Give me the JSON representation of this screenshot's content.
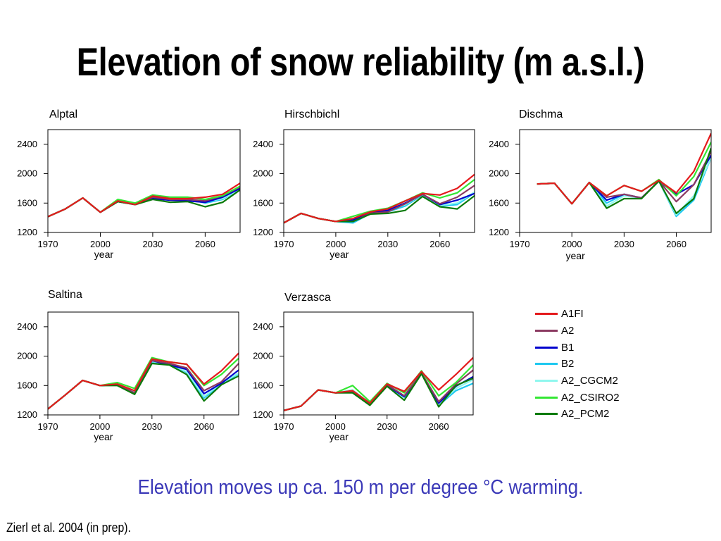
{
  "title": "Elevation of snow reliability (m a.s.l.)",
  "subtitle": "Elevation moves up ca. 150 m per degree °C warming.",
  "citation": "Zierl et al. 2004 (in prep).",
  "legend": [
    {
      "name": "A1FI",
      "color": "#e41a1c"
    },
    {
      "name": "A2",
      "color": "#8b3a62"
    },
    {
      "name": "B1",
      "color": "#0000cd"
    },
    {
      "name": "B2",
      "color": "#1ec8f0"
    },
    {
      "name": "A2_CGCM2",
      "color": "#8ff7ee"
    },
    {
      "name": "A2_CSIRO2",
      "color": "#33e633"
    },
    {
      "name": "A2_PCM2",
      "color": "#0a7a0a"
    }
  ],
  "chart_data": [
    {
      "type": "line",
      "title": "Alptal",
      "xlabel": "year",
      "ylabel": "",
      "xlim": [
        1970,
        2080
      ],
      "ylim": [
        1200,
        2600
      ],
      "xticks": [
        1970,
        2000,
        2030,
        2060
      ],
      "yticks": [
        1200,
        1600,
        2000,
        2400
      ],
      "x": [
        1970,
        1980,
        1990,
        2000,
        2010,
        2020,
        2030,
        2040,
        2050,
        2060,
        2070,
        2080
      ],
      "series": [
        {
          "name": "A1FI",
          "values": [
            1415,
            1520,
            1670,
            1475,
            1630,
            1580,
            1695,
            1660,
            1660,
            1680,
            1720,
            1870
          ]
        },
        {
          "name": "A2",
          "values": [
            1415,
            1520,
            1670,
            1475,
            1620,
            1580,
            1680,
            1650,
            1650,
            1630,
            1700,
            1820
          ]
        },
        {
          "name": "B1",
          "values": [
            1415,
            1520,
            1670,
            1475,
            1620,
            1580,
            1660,
            1640,
            1630,
            1610,
            1680,
            1800
          ]
        },
        {
          "name": "B2",
          "values": [
            1415,
            1520,
            1670,
            1475,
            1620,
            1590,
            1680,
            1650,
            1660,
            1600,
            1650,
            1790
          ]
        },
        {
          "name": "A2_CGCM2",
          "values": [
            1415,
            1520,
            1670,
            1475,
            1620,
            1600,
            1700,
            1660,
            1650,
            1620,
            1660,
            1790
          ]
        },
        {
          "name": "A2_CSIRO2",
          "values": [
            1415,
            1520,
            1670,
            1475,
            1650,
            1600,
            1710,
            1680,
            1680,
            1650,
            1700,
            1830
          ]
        },
        {
          "name": "A2_PCM2",
          "values": [
            1415,
            1520,
            1670,
            1475,
            1620,
            1580,
            1650,
            1610,
            1620,
            1550,
            1610,
            1780
          ]
        }
      ]
    },
    {
      "type": "line",
      "title": "Hirschbichl",
      "xlabel": "year",
      "ylabel": "",
      "xlim": [
        1970,
        2080
      ],
      "ylim": [
        1200,
        2600
      ],
      "xticks": [
        1970,
        2000,
        2030,
        2060
      ],
      "yticks": [
        1200,
        1600,
        2000,
        2400
      ],
      "x": [
        1970,
        1980,
        1990,
        2000,
        2010,
        2020,
        2030,
        2040,
        2050,
        2060,
        2070,
        2080
      ],
      "series": [
        {
          "name": "A1FI",
          "values": [
            1330,
            1460,
            1390,
            1350,
            1390,
            1480,
            1520,
            1630,
            1730,
            1710,
            1800,
            1990
          ]
        },
        {
          "name": "A2",
          "values": [
            1330,
            1460,
            1390,
            1350,
            1350,
            1460,
            1480,
            1590,
            1720,
            1590,
            1680,
            1840
          ]
        },
        {
          "name": "B1",
          "values": [
            1330,
            1460,
            1390,
            1350,
            1370,
            1470,
            1500,
            1600,
            1720,
            1580,
            1640,
            1730
          ]
        },
        {
          "name": "B2",
          "values": [
            1330,
            1460,
            1390,
            1350,
            1330,
            1460,
            1480,
            1560,
            1710,
            1560,
            1580,
            1740
          ]
        },
        {
          "name": "A2_CGCM2",
          "values": [
            1330,
            1460,
            1390,
            1350,
            1360,
            1470,
            1500,
            1580,
            1720,
            1570,
            1600,
            1750
          ]
        },
        {
          "name": "A2_CSIRO2",
          "values": [
            1330,
            1460,
            1390,
            1350,
            1420,
            1490,
            1530,
            1630,
            1740,
            1670,
            1740,
            1920
          ]
        },
        {
          "name": "A2_PCM2",
          "values": [
            1330,
            1460,
            1390,
            1350,
            1350,
            1450,
            1460,
            1500,
            1690,
            1550,
            1520,
            1700
          ]
        }
      ]
    },
    {
      "type": "line",
      "title": "Dischma",
      "xlabel": "year",
      "ylabel": "",
      "xlim": [
        1970,
        2080
      ],
      "ylim": [
        1200,
        2600
      ],
      "xticks": [
        1970,
        2000,
        2030,
        2060
      ],
      "yticks": [
        1200,
        1600,
        2000,
        2400
      ],
      "x": [
        1980,
        1990,
        2000,
        2010,
        2020,
        2030,
        2040,
        2050,
        2060,
        2070,
        2080
      ],
      "series": [
        {
          "name": "A1FI",
          "values": [
            1860,
            1870,
            1590,
            1880,
            1700,
            1840,
            1760,
            1910,
            1740,
            2030,
            2550
          ]
        },
        {
          "name": "A2",
          "values": [
            1860,
            1870,
            1590,
            1880,
            1680,
            1720,
            1670,
            1900,
            1620,
            1850,
            2300
          ]
        },
        {
          "name": "B1",
          "values": [
            1860,
            1870,
            1590,
            1880,
            1640,
            1720,
            1670,
            1900,
            1720,
            1850,
            2250
          ]
        },
        {
          "name": "B2",
          "values": [
            1860,
            1870,
            1590,
            1880,
            1600,
            1720,
            1670,
            1900,
            1420,
            1640,
            2220
          ]
        },
        {
          "name": "A2_CGCM2",
          "values": [
            1860,
            1870,
            1590,
            1880,
            1560,
            1700,
            1670,
            1900,
            1440,
            1700,
            2220
          ]
        },
        {
          "name": "A2_CSIRO2",
          "values": [
            1860,
            1870,
            1590,
            1880,
            1700,
            1840,
            1760,
            1920,
            1700,
            1960,
            2430
          ]
        },
        {
          "name": "A2_PCM2",
          "values": [
            1860,
            1870,
            1590,
            1880,
            1530,
            1660,
            1660,
            1900,
            1460,
            1660,
            2350
          ]
        }
      ]
    },
    {
      "type": "line",
      "title": "Saltina",
      "xlabel": "year",
      "ylabel": "",
      "xlim": [
        1970,
        2080
      ],
      "ylim": [
        1200,
        2600
      ],
      "xticks": [
        1970,
        2000,
        2030,
        2060
      ],
      "yticks": [
        1200,
        1600,
        2000,
        2400
      ],
      "x": [
        1970,
        1980,
        1990,
        2000,
        2010,
        2020,
        2030,
        2040,
        2050,
        2060,
        2070,
        2080
      ],
      "series": [
        {
          "name": "A1FI",
          "values": [
            1280,
            1470,
            1670,
            1600,
            1620,
            1530,
            1960,
            1920,
            1890,
            1620,
            1800,
            2040
          ]
        },
        {
          "name": "A2",
          "values": [
            1280,
            1470,
            1670,
            1600,
            1610,
            1500,
            1940,
            1900,
            1840,
            1530,
            1650,
            1900
          ]
        },
        {
          "name": "B1",
          "values": [
            1280,
            1470,
            1670,
            1600,
            1610,
            1500,
            1940,
            1880,
            1820,
            1490,
            1630,
            1810
          ]
        },
        {
          "name": "B2",
          "values": [
            1280,
            1470,
            1670,
            1600,
            1610,
            1510,
            1920,
            1890,
            1780,
            1430,
            1620,
            1760
          ]
        },
        {
          "name": "A2_CGCM2",
          "values": [
            1280,
            1470,
            1670,
            1600,
            1610,
            1510,
            1930,
            1890,
            1790,
            1450,
            1630,
            1770
          ]
        },
        {
          "name": "A2_CSIRO2",
          "values": [
            1280,
            1470,
            1670,
            1600,
            1640,
            1560,
            1980,
            1920,
            1890,
            1600,
            1750,
            1970
          ]
        },
        {
          "name": "A2_PCM2",
          "values": [
            1280,
            1470,
            1670,
            1600,
            1600,
            1480,
            1900,
            1880,
            1750,
            1390,
            1610,
            1730
          ]
        }
      ]
    },
    {
      "type": "line",
      "title": "Verzasca",
      "xlabel": "year",
      "ylabel": "",
      "xlim": [
        1970,
        2080
      ],
      "ylim": [
        1200,
        2600
      ],
      "xticks": [
        1970,
        2000,
        2030,
        2060
      ],
      "yticks": [
        1200,
        1600,
        2000,
        2400
      ],
      "x": [
        1970,
        1980,
        1990,
        2000,
        2010,
        2020,
        2030,
        2040,
        2050,
        2060,
        2070,
        2080
      ],
      "series": [
        {
          "name": "A1FI",
          "values": [
            1260,
            1320,
            1540,
            1500,
            1530,
            1360,
            1620,
            1520,
            1790,
            1540,
            1750,
            1980
          ]
        },
        {
          "name": "A2",
          "values": [
            1260,
            1320,
            1540,
            1500,
            1520,
            1350,
            1610,
            1460,
            1770,
            1380,
            1620,
            1810
          ]
        },
        {
          "name": "B1",
          "values": [
            1260,
            1320,
            1540,
            1500,
            1520,
            1340,
            1600,
            1450,
            1760,
            1360,
            1590,
            1720
          ]
        },
        {
          "name": "B2",
          "values": [
            1260,
            1320,
            1540,
            1500,
            1510,
            1350,
            1600,
            1440,
            1760,
            1330,
            1530,
            1630
          ]
        },
        {
          "name": "A2_CGCM2",
          "values": [
            1260,
            1320,
            1540,
            1500,
            1540,
            1360,
            1620,
            1460,
            1780,
            1340,
            1560,
            1680
          ]
        },
        {
          "name": "A2_CSIRO2",
          "values": [
            1260,
            1320,
            1540,
            1500,
            1600,
            1380,
            1630,
            1500,
            1800,
            1460,
            1640,
            1880
          ]
        },
        {
          "name": "A2_PCM2",
          "values": [
            1260,
            1320,
            1540,
            1500,
            1500,
            1330,
            1590,
            1400,
            1760,
            1310,
            1600,
            1700
          ]
        }
      ]
    }
  ]
}
